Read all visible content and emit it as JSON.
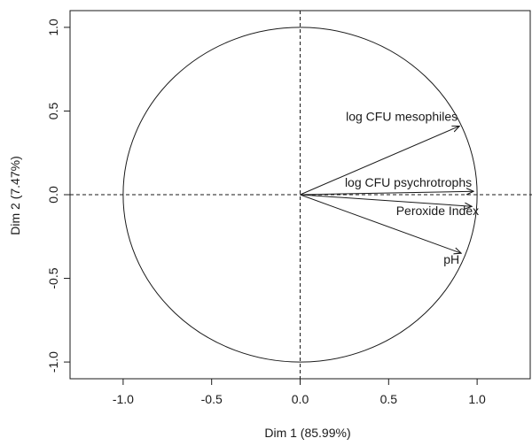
{
  "chart_data": {
    "type": "scatter",
    "subtype": "pca-correlation-circle",
    "title": "",
    "xlabel": "Dim 1 (85.99%)",
    "ylabel": "Dim 2 (7.47%)",
    "xlim": [
      -1.3,
      1.3
    ],
    "ylim": [
      -1.1,
      1.1
    ],
    "x_ticks": [
      -1.0,
      -0.5,
      0.0,
      0.5,
      1.0
    ],
    "x_tick_labels": [
      "-1.0",
      "-0.5",
      "0.0",
      "0.5",
      "1.0"
    ],
    "y_ticks": [
      -1.0,
      -0.5,
      0.0,
      0.5,
      1.0
    ],
    "y_tick_labels": [
      "-1.0",
      "-0.5",
      "0.0",
      "0.5",
      "1.0"
    ],
    "unit_circle": true,
    "axis_lines_at_zero": true,
    "grid": false,
    "colors": {
      "ink": "#1a1a1a"
    },
    "series": [
      {
        "name": "log CFU mesophiles",
        "x": 0.9,
        "y": 0.41
      },
      {
        "name": "log CFU psychrotrophs",
        "x": 0.98,
        "y": 0.02
      },
      {
        "name": "Peroxide Index",
        "x": 0.97,
        "y": -0.07
      },
      {
        "name": "pH",
        "x": 0.91,
        "y": -0.35
      }
    ]
  }
}
